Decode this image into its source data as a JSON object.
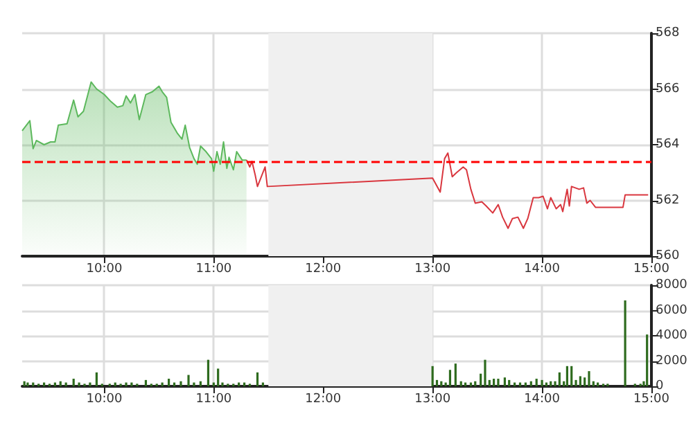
{
  "chart_data": [
    {
      "type": "line",
      "xlim": [
        9.25,
        15
      ],
      "xticks": [
        {
          "value": 10,
          "label": "10:00"
        },
        {
          "value": 11,
          "label": "11:00"
        },
        {
          "value": 12,
          "label": "12:00"
        },
        {
          "value": 13,
          "label": "13:00"
        },
        {
          "value": 14,
          "label": "14:00"
        },
        {
          "value": 15,
          "label": "15:00"
        }
      ],
      "ylim": [
        560,
        568
      ],
      "yticks": [
        560,
        562,
        564,
        566,
        568
      ],
      "grid": true,
      "series": [
        {
          "type": "area",
          "color": "#5cb85c",
          "x": [
            9.25,
            9.32,
            9.35,
            9.38,
            9.45,
            9.51,
            9.55,
            9.58,
            9.66,
            9.72,
            9.76,
            9.81,
            9.88,
            9.93,
            10.0,
            10.06,
            10.12,
            10.17,
            10.2,
            10.24,
            10.28,
            10.32,
            10.38,
            10.44,
            10.5,
            10.53,
            10.57,
            10.61,
            10.67,
            10.71,
            10.74,
            10.78,
            10.82,
            10.85,
            10.88,
            10.93,
            10.98,
            11.0,
            11.03,
            11.06,
            11.09,
            11.12,
            11.14,
            11.18,
            11.21,
            11.26,
            11.3
          ],
          "values": [
            564.5,
            564.86,
            563.86,
            564.15,
            564.0,
            564.1,
            564.1,
            564.7,
            564.75,
            565.6,
            565.0,
            565.2,
            566.25,
            566.0,
            565.8,
            565.55,
            565.35,
            565.4,
            565.75,
            565.5,
            565.8,
            564.9,
            565.8,
            565.9,
            566.1,
            565.9,
            565.7,
            564.8,
            564.4,
            564.2,
            564.7,
            563.9,
            563.5,
            563.3,
            563.95,
            563.75,
            563.5,
            563.05,
            563.75,
            563.3,
            564.1,
            563.15,
            563.55,
            563.1,
            563.75,
            563.45,
            563.45
          ]
        },
        {
          "color": "#d9363e",
          "x": [
            11.3,
            11.33,
            11.35,
            11.38,
            11.4,
            11.43,
            11.47,
            11.49,
            13.0,
            13.07,
            13.11,
            13.14,
            13.18,
            13.22,
            13.28,
            13.31,
            13.35,
            13.39,
            13.45,
            13.49,
            13.55,
            13.6,
            13.64,
            13.69,
            13.73,
            13.78,
            13.83,
            13.87,
            13.92,
            13.97,
            14.01,
            14.05,
            14.08,
            14.13,
            14.17,
            14.19,
            14.23,
            14.25,
            14.27,
            14.34,
            14.38,
            14.41,
            14.44,
            14.49,
            14.74,
            14.76,
            14.97
          ],
          "values": [
            563.45,
            563.2,
            563.4,
            562.9,
            562.5,
            562.8,
            563.2,
            562.5,
            562.8,
            562.3,
            563.5,
            563.7,
            562.85,
            563.0,
            563.2,
            563.1,
            562.4,
            561.9,
            561.95,
            561.8,
            561.55,
            561.85,
            561.4,
            561.0,
            561.35,
            561.4,
            561.0,
            561.35,
            562.1,
            562.1,
            562.15,
            561.7,
            562.1,
            561.7,
            561.85,
            561.6,
            562.4,
            561.8,
            562.5,
            562.4,
            562.45,
            561.9,
            562.0,
            561.75,
            561.75,
            562.2,
            562.2
          ]
        }
      ],
      "ref_lines": [
        {
          "axis": "y",
          "value": 563.4,
          "color": "#ff0000",
          "line_style": "dashed"
        }
      ],
      "bands": [
        {
          "axis": "x",
          "from": 11.5,
          "to": 13,
          "color": "#f0f0f0"
        }
      ]
    },
    {
      "type": "bar",
      "color": "#2e6b1e",
      "xlim": [
        9.25,
        15
      ],
      "xticks": [
        {
          "value": 10,
          "label": "10:00"
        },
        {
          "value": 11,
          "label": "11:00"
        },
        {
          "value": 12,
          "label": "12:00"
        },
        {
          "value": 13,
          "label": "13:00"
        },
        {
          "value": 14,
          "label": "14:00"
        },
        {
          "value": 15,
          "label": "15:00"
        }
      ],
      "ylim": [
        0,
        8000
      ],
      "yticks": [
        0,
        2000,
        4000,
        6000,
        8000
      ],
      "grid": true,
      "x": [
        9.27,
        9.3,
        9.35,
        9.4,
        9.45,
        9.5,
        9.55,
        9.6,
        9.65,
        9.72,
        9.77,
        9.82,
        9.87,
        9.93,
        9.98,
        10.05,
        10.1,
        10.15,
        10.2,
        10.25,
        10.3,
        10.38,
        10.43,
        10.48,
        10.53,
        10.59,
        10.64,
        10.7,
        10.77,
        10.82,
        10.88,
        10.95,
        11.0,
        11.04,
        11.08,
        11.13,
        11.18,
        11.23,
        11.28,
        11.33,
        11.4,
        11.45,
        13.0,
        13.04,
        13.08,
        13.12,
        13.16,
        13.21,
        13.26,
        13.3,
        13.35,
        13.39,
        13.44,
        13.48,
        13.52,
        13.56,
        13.6,
        13.66,
        13.7,
        13.75,
        13.8,
        13.85,
        13.9,
        13.95,
        14.0,
        14.04,
        14.08,
        14.12,
        14.16,
        14.2,
        14.23,
        14.27,
        14.31,
        14.35,
        14.39,
        14.43,
        14.47,
        14.51,
        14.56,
        14.6,
        14.76,
        14.85,
        14.9,
        14.93,
        14.96
      ],
      "values": [
        400,
        300,
        300,
        200,
        300,
        200,
        300,
        400,
        300,
        600,
        300,
        200,
        300,
        1100,
        200,
        200,
        300,
        200,
        300,
        300,
        200,
        500,
        200,
        200,
        300,
        600,
        300,
        400,
        900,
        300,
        400,
        2100,
        300,
        1400,
        300,
        200,
        200,
        300,
        300,
        200,
        1100,
        300,
        1600,
        500,
        400,
        300,
        1300,
        1800,
        400,
        300,
        300,
        400,
        1000,
        2100,
        500,
        600,
        600,
        700,
        500,
        300,
        300,
        300,
        400,
        600,
        500,
        300,
        400,
        400,
        1100,
        400,
        1600,
        1600,
        500,
        800,
        700,
        1200,
        400,
        300,
        200,
        200,
        6800,
        200,
        200,
        400,
        4100
      ],
      "bands": [
        {
          "axis": "x",
          "from": 11.5,
          "to": 13,
          "color": "#f0f0f0"
        }
      ]
    }
  ]
}
